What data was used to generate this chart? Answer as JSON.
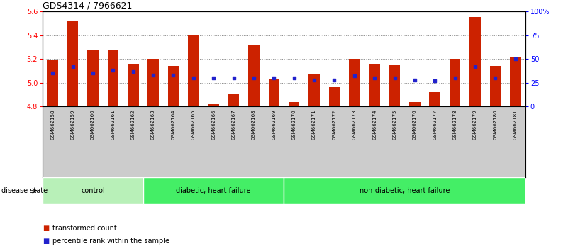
{
  "title": "GDS4314 / 7966621",
  "samples": [
    "GSM662158",
    "GSM662159",
    "GSM662160",
    "GSM662161",
    "GSM662162",
    "GSM662163",
    "GSM662164",
    "GSM662165",
    "GSM662166",
    "GSM662167",
    "GSM662168",
    "GSM662169",
    "GSM662170",
    "GSM662171",
    "GSM662172",
    "GSM662173",
    "GSM662174",
    "GSM662175",
    "GSM662176",
    "GSM662177",
    "GSM662178",
    "GSM662179",
    "GSM662180",
    "GSM662181"
  ],
  "red_values": [
    5.19,
    5.52,
    5.28,
    5.28,
    5.16,
    5.2,
    5.14,
    5.4,
    4.82,
    4.91,
    5.32,
    5.03,
    4.84,
    5.07,
    4.97,
    5.2,
    5.16,
    5.15,
    4.84,
    4.92,
    5.2,
    5.55,
    5.14,
    5.22
  ],
  "blue_values": [
    35,
    42,
    35,
    38,
    37,
    33,
    33,
    30,
    30,
    30,
    30,
    30,
    30,
    28,
    28,
    32,
    30,
    30,
    28,
    27,
    30,
    42,
    30,
    50
  ],
  "group_boundaries": [
    {
      "start": 0,
      "end": 4,
      "label": "control",
      "color": "#b8f0b8"
    },
    {
      "start": 5,
      "end": 11,
      "label": "diabetic, heart failure",
      "color": "#44ee66"
    },
    {
      "start": 12,
      "end": 23,
      "label": "non-diabetic, heart failure",
      "color": "#44ee66"
    }
  ],
  "ylim_left": [
    4.8,
    5.6
  ],
  "ylim_right": [
    0,
    100
  ],
  "yticks_left": [
    4.8,
    5.0,
    5.2,
    5.4,
    5.6
  ],
  "yticks_right": [
    0,
    25,
    50,
    75,
    100
  ],
  "ytick_labels_right": [
    "0",
    "25",
    "50",
    "75",
    "100%"
  ],
  "bar_color": "#cc2200",
  "blue_color": "#2222cc",
  "grid_color": "#888888",
  "tick_bg_color": "#cccccc",
  "legend_items": [
    "transformed count",
    "percentile rank within the sample"
  ],
  "disease_state_label": "disease state"
}
